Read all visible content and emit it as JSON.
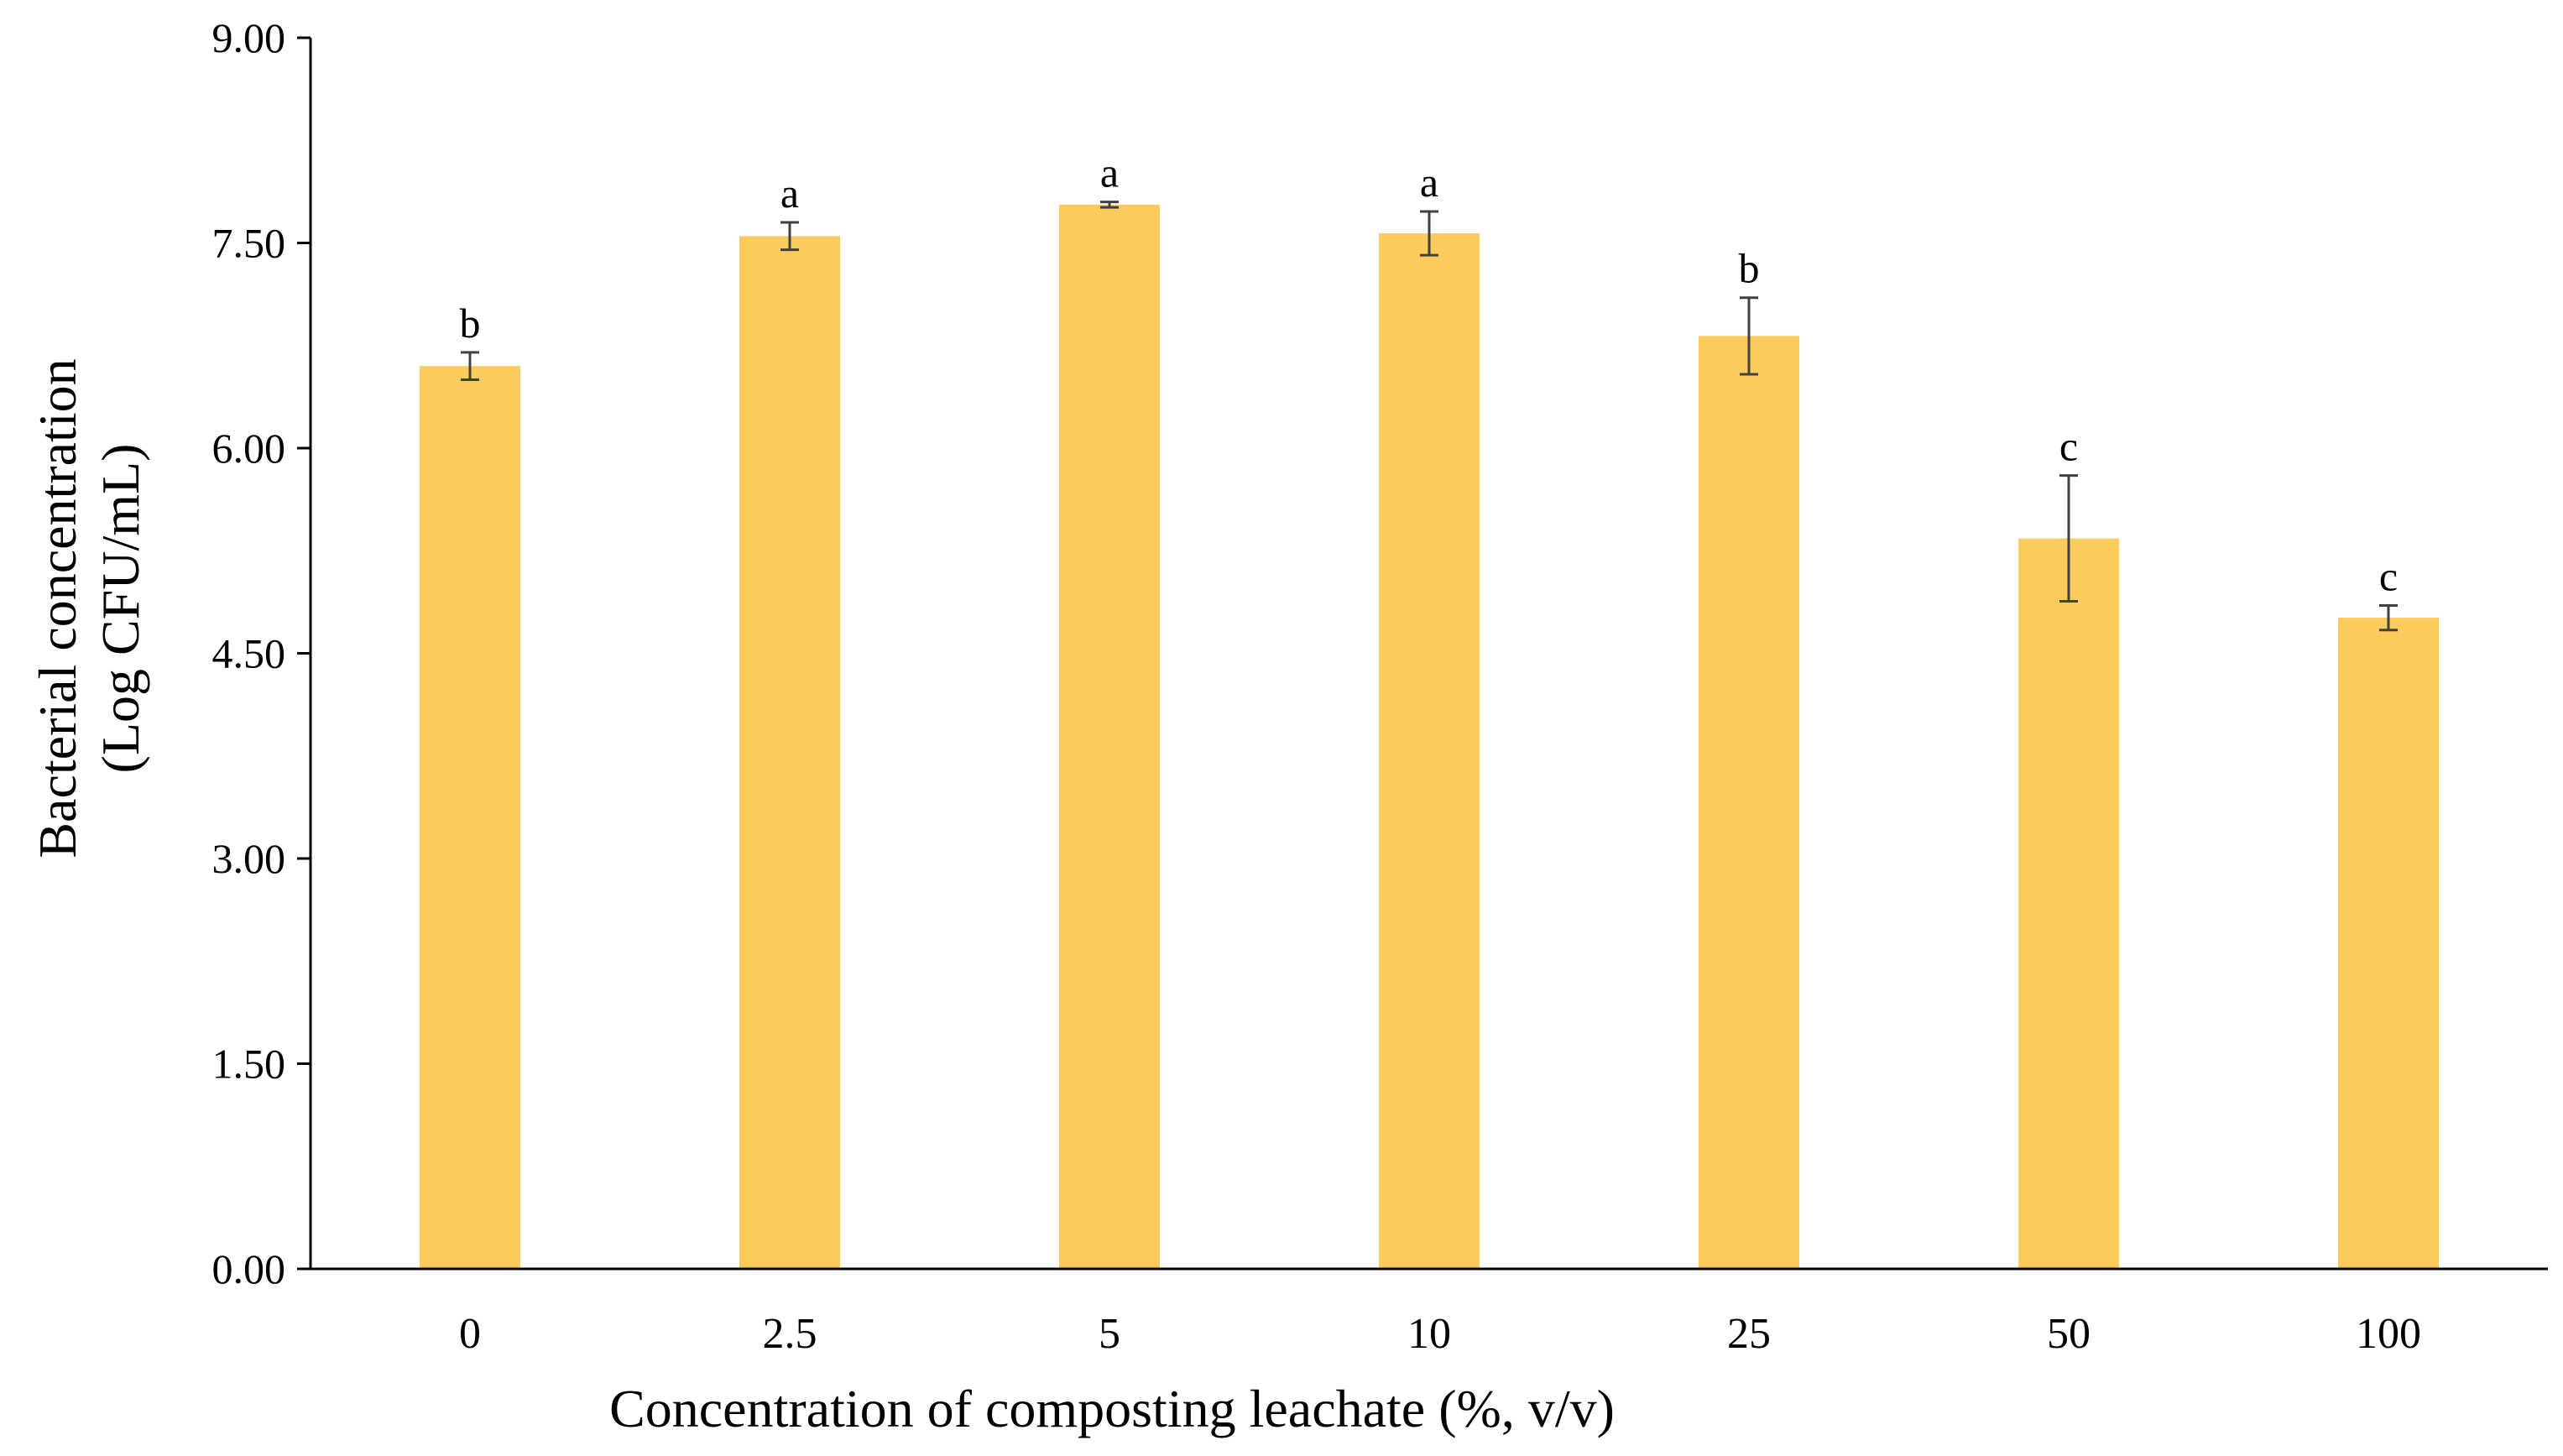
{
  "chart_data": {
    "type": "bar",
    "title": "",
    "xlabel": "Concentration of composting leachate (%, v/v)",
    "ylabel_line1": "Bacterial concentration",
    "ylabel_line2": "(Log CFU/mL)",
    "categories": [
      "0",
      "2.5",
      "5",
      "10",
      "25",
      "50",
      "100"
    ],
    "series": [
      {
        "values": [
          6.6,
          7.55,
          7.78,
          7.57,
          6.82,
          5.34,
          4.76
        ],
        "errors": [
          0.1,
          0.1,
          0.02,
          0.16,
          0.28,
          0.46,
          0.09
        ],
        "labels": [
          "b",
          "a",
          "a",
          "a",
          "b",
          "c",
          "c"
        ]
      }
    ],
    "ylim": [
      0,
      9
    ],
    "yticks": [
      "0.00",
      "1.50",
      "3.00",
      "4.50",
      "6.00",
      "7.50",
      "9.00"
    ],
    "grid": false,
    "legend": "none",
    "colors": {
      "bar": "#FDCB5D",
      "axis": "#000000",
      "error_bar": "#404040",
      "text": "#000000"
    }
  }
}
